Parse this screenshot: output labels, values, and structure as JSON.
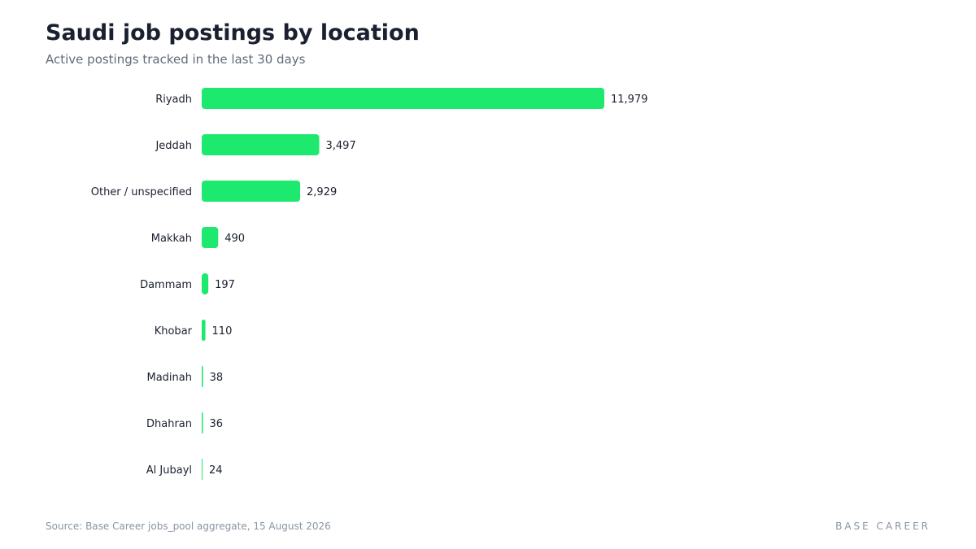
{
  "header": {
    "title": "Saudi job postings by location",
    "subtitle": "Active postings tracked in the last 30 days"
  },
  "footer": {
    "source": "Source: Base Career jobs_pool aggregate, 15 August 2026",
    "brand": "BASE CAREER"
  },
  "colors": {
    "bar": "#1de96e",
    "label": "#1b2030"
  },
  "chart_data": {
    "type": "bar",
    "orientation": "horizontal",
    "title": "Saudi job postings by location",
    "subtitle": "Active postings tracked in the last 30 days",
    "categories": [
      "Riyadh",
      "Jeddah",
      "Other / unspecified",
      "Makkah",
      "Dammam",
      "Khobar",
      "Madinah",
      "Dhahran",
      "Al Jubayl"
    ],
    "values": [
      11979,
      3497,
      2929,
      490,
      197,
      110,
      38,
      36,
      24
    ],
    "value_labels": [
      "11,979",
      "3,497",
      "2,929",
      "490",
      "197",
      "110",
      "38",
      "36",
      "24"
    ],
    "xlim": [
      0,
      11979
    ],
    "grid": false,
    "legend": "none"
  }
}
